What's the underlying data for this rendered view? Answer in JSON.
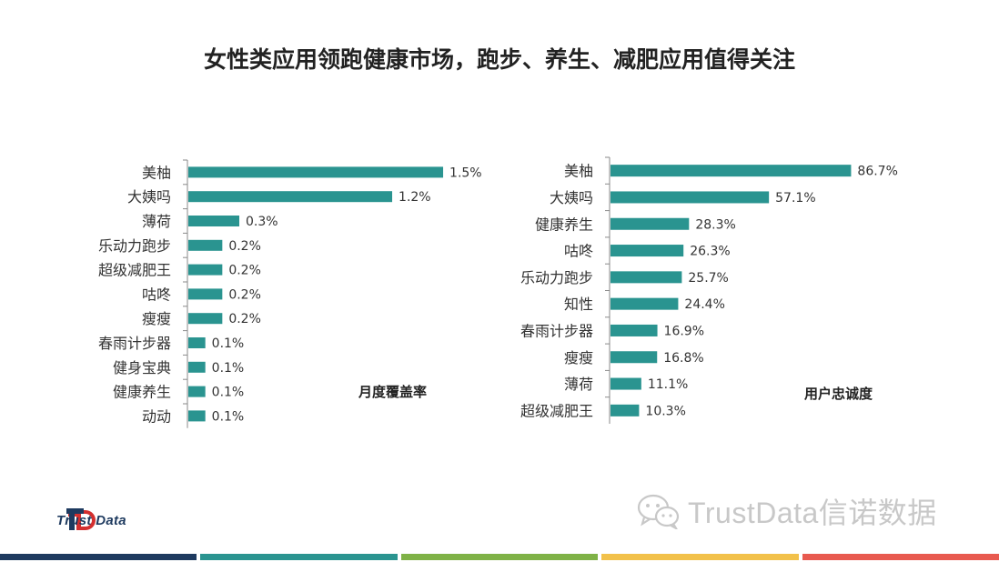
{
  "page": {
    "title": "女性类应用领跑健康市场，跑步、养生、减肥应用值得关注"
  },
  "colors": {
    "bar": "#2a9490",
    "axis": "#8a8a8a",
    "footer_stripes": [
      "#1e3a5f",
      "#2a9490",
      "#7fb247",
      "#f2c14a",
      "#e85a4f"
    ]
  },
  "chart_data": [
    {
      "type": "bar",
      "orientation": "horizontal",
      "title": "月度覆盖率",
      "categories": [
        "美柚",
        "大姨吗",
        "薄荷",
        "乐动力跑步",
        "超级减肥王",
        "咕咚",
        "瘦瘦",
        "春雨计步器",
        "健身宝典",
        "健康养生",
        "动动"
      ],
      "values": [
        1.5,
        1.2,
        0.3,
        0.2,
        0.2,
        0.2,
        0.2,
        0.1,
        0.1,
        0.1,
        0.1
      ],
      "value_labels": [
        "1.5%",
        "1.2%",
        "0.3%",
        "0.2%",
        "0.2%",
        "0.2%",
        "0.2%",
        "0.1%",
        "0.1%",
        "0.1%",
        "0.1%"
      ],
      "unit": "%",
      "grid": false
    },
    {
      "type": "bar",
      "orientation": "horizontal",
      "title": "用户忠诚度",
      "categories": [
        "美柚",
        "大姨吗",
        "健康养生",
        "咕咚",
        "乐动力跑步",
        "知性",
        "春雨计步器",
        "瘦瘦",
        "薄荷",
        "超级减肥王"
      ],
      "values": [
        86.7,
        57.1,
        28.3,
        26.3,
        25.7,
        24.4,
        16.9,
        16.8,
        11.1,
        10.3
      ],
      "value_labels": [
        "86.7%",
        "57.1%",
        "28.3%",
        "26.3%",
        "25.7%",
        "24.4%",
        "16.9%",
        "16.8%",
        "11.1%",
        "10.3%"
      ],
      "unit": "%",
      "grid": false
    }
  ],
  "branding": {
    "logo_text": "Trust Data",
    "watermark": "TrustData信诺数据",
    "wechat_icon": "wechat-icon"
  }
}
